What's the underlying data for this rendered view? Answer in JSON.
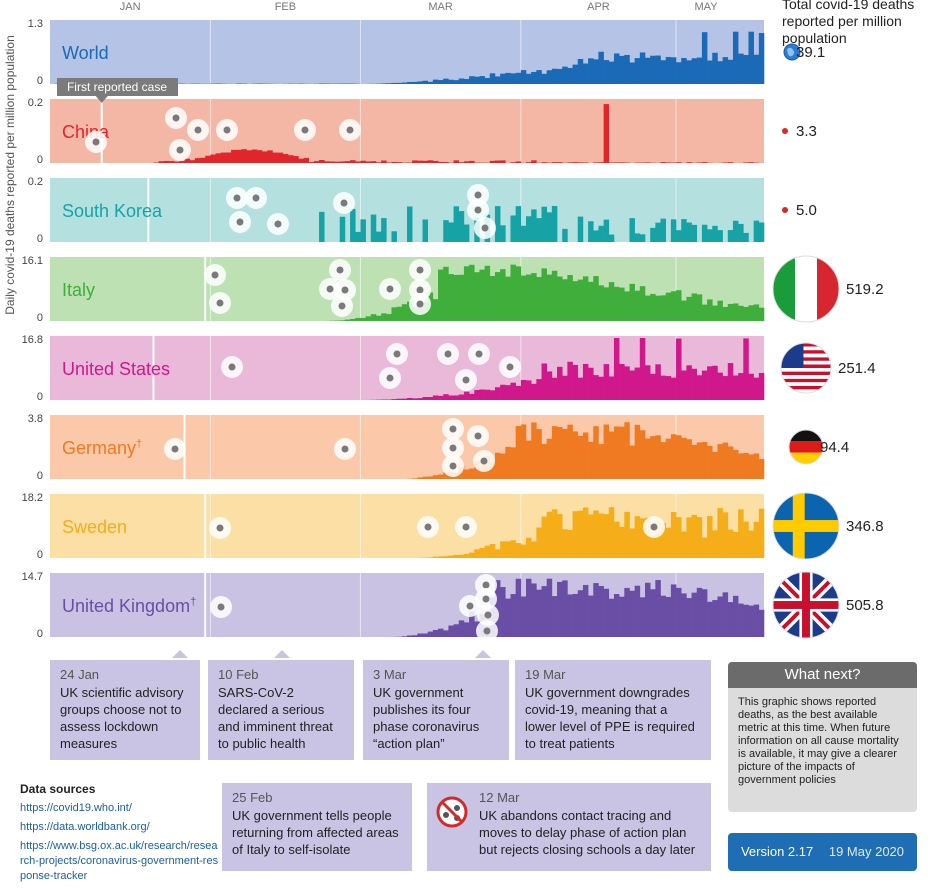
{
  "months": [
    "JAN",
    "FEB",
    "MAR",
    "APR",
    "MAY"
  ],
  "y_axis_label": "Daily covid-19 deaths reported per million population",
  "totals_title": "Total covid-19 deaths reported per million population",
  "first_case_label": "First reported case",
  "colors": {
    "bg_world": "#b4c3e6",
    "bar_world": "#1a6ab8",
    "bg_china": "#f4b7a6",
    "bar_china": "#e0262a"
  },
  "chart_data": {
    "type": "bar",
    "title": "",
    "xlabel": "",
    "ylabel": "Daily covid-19 deaths reported per million population",
    "x_start": "2020-01-01",
    "x_end": "2020-05-17",
    "series": [
      {
        "name": "World",
        "ymax_label": "1.3",
        "ymax": 1.3,
        "total": "39.1",
        "bg": "#b4c3e6",
        "bar": "#1a6ab8",
        "label_color": "#1a6ab8",
        "first_case": null,
        "start_day": 20,
        "profile": "world",
        "dagger": false
      },
      {
        "name": "China",
        "ymax_label": "0.2",
        "ymax": 0.2,
        "total": "3.3",
        "bg": "#f4b7a6",
        "bar": "#e0262a",
        "label_color": "#e0262a",
        "first_case": "2020-01-11",
        "start_day": 11,
        "profile": "china",
        "dagger": false
      },
      {
        "name": "South Korea",
        "ymax_label": "0.2",
        "ymax": 0.2,
        "total": "5.0",
        "bg": "#b4e0e0",
        "bar": "#17a3a6",
        "label_color": "#17a3a6",
        "first_case": "2020-01-20",
        "start_day": 51,
        "profile": "korea",
        "dagger": false
      },
      {
        "name": "Italy",
        "ymax_label": "16.1",
        "ymax": 16.1,
        "total": "519.2",
        "bg": "#bde1b3",
        "bar": "#3fae3b",
        "label_color": "#3fae3b",
        "first_case": "2020-01-31",
        "start_day": 52,
        "profile": "italy",
        "dagger": false
      },
      {
        "name": "United States",
        "ymax_label": "16.8",
        "ymax": 16.8,
        "total": "251.4",
        "bg": "#eab8d8",
        "bar": "#d0188c",
        "label_color": "#d0188c",
        "first_case": "2020-01-21",
        "start_day": 59,
        "profile": "us",
        "dagger": false
      },
      {
        "name": "Germany",
        "ymax_label": "3.8",
        "ymax": 3.8,
        "total": "94.4",
        "bg": "#fbc9a9",
        "bar": "#f07a22",
        "label_color": "#f07a22",
        "first_case": "2020-01-27",
        "start_day": 68,
        "profile": "germany",
        "dagger": true
      },
      {
        "name": "Sweden",
        "ymax_label": "18.2",
        "ymax": 18.2,
        "total": "346.8",
        "bg": "#fcdfa4",
        "bar": "#f5ad1a",
        "label_color": "#f5ad1a",
        "first_case": "2020-01-31",
        "start_day": 70,
        "profile": "sweden",
        "dagger": false
      },
      {
        "name": "United Kingdom",
        "ymax_label": "14.7",
        "ymax": 14.7,
        "total": "505.8",
        "bg": "#c9c2e3",
        "bar": "#6a4ea6",
        "label_color": "#6a4ea6",
        "first_case": "2020-01-31",
        "start_day": 65,
        "profile": "uk",
        "dagger": true
      }
    ]
  },
  "callouts": [
    {
      "date": "24 Jan",
      "text": "UK scientific advisory groups choose not to assess lockdown measures"
    },
    {
      "date": "10 Feb",
      "text": "SARS-CoV-2 declared a serious and imminent threat to public health"
    },
    {
      "date": "3 Mar",
      "text": "UK government publishes its four phase coronavirus “action plan”"
    },
    {
      "date": "19 Mar",
      "text": "UK government downgrades covid-19, meaning that a lower level of PPE is required to treat patients"
    },
    {
      "date": "25 Feb",
      "text": "UK government tells people returning from affected areas of Italy to self-isolate"
    },
    {
      "date": "12 Mar",
      "text": "UK abandons contact tracing and moves to delay phase of action plan but rejects closing schools a day later"
    }
  ],
  "data_sources": {
    "title": "Data sources",
    "links": [
      "https://covid19.who.int/",
      "https://data.worldbank.org/",
      "https://www.bsg.ox.ac.uk/research/research-projects/coronavirus-government-response-tracker"
    ]
  },
  "what_next": {
    "title": "What next?",
    "text": "This graphic shows reported deaths, as the best available metric at this time. When future information on all cause mortality is available, it may give a clearer picture of the impacts of government policies"
  },
  "version": {
    "label": "Version 2.17",
    "date": "19 May 2020"
  }
}
